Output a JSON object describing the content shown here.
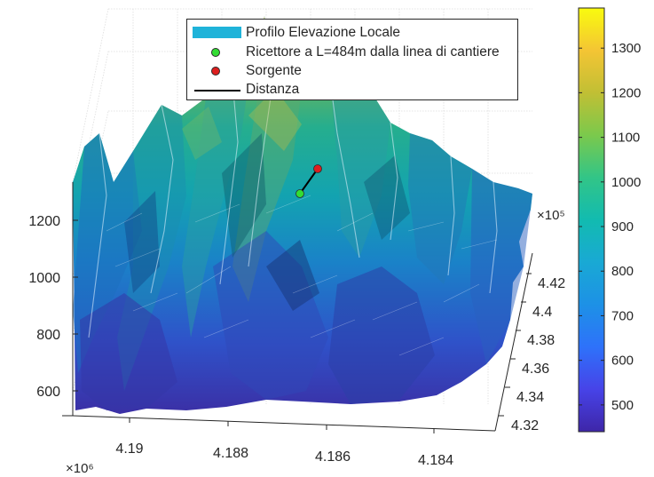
{
  "chart_data": {
    "type": "surface",
    "title": "",
    "xlabel": "",
    "ylabel": "",
    "zlabel": "",
    "x_axis": {
      "ticks": [
        4.19,
        4.188,
        4.186,
        4.184
      ],
      "tick_labels": [
        "4.19",
        "4.188",
        "4.186",
        "4.184"
      ],
      "exponent_label": "×10⁶"
    },
    "y_axis": {
      "ticks": [
        4.32,
        4.34,
        4.36,
        4.38,
        4.4,
        4.42
      ],
      "tick_labels": [
        "4.32",
        "4.34",
        "4.36",
        "4.38",
        "4.4",
        "4.42"
      ],
      "exponent_label": "×10⁵"
    },
    "z_axis": {
      "ticks": [
        600,
        800,
        1000,
        1200
      ],
      "tick_labels": [
        "600",
        "800",
        "1000",
        "1200"
      ],
      "zlim": [
        520,
        1340
      ]
    },
    "colorbar": {
      "colormap": "parula",
      "clim": [
        440,
        1390
      ],
      "ticks": [
        500,
        600,
        700,
        800,
        900,
        1000,
        1100,
        1200,
        1300
      ],
      "tick_labels": [
        "500",
        "600",
        "700",
        "800",
        "900",
        "1000",
        "1100",
        "1200",
        "1300"
      ]
    },
    "grid": true,
    "legend_position": "top-center",
    "legend": [
      {
        "label": "Profilo Elevazione Locale",
        "kind": "patch",
        "color": "#1fb3d9"
      },
      {
        "label": "Ricettore a L=484m dalla linea di cantiere",
        "kind": "marker",
        "color": "#33dd33"
      },
      {
        "label": "Sorgente",
        "kind": "marker",
        "color": "#dd1f1f"
      },
      {
        "label": "Distanza",
        "kind": "line",
        "color": "#000000"
      }
    ],
    "points": {
      "receptor": {
        "x": 4186600.0,
        "y": 439100.0,
        "z": 1080
      },
      "source": {
        "x": 4186100.0,
        "y": 439500.0,
        "z": 1160
      }
    },
    "distance_m": 484
  }
}
